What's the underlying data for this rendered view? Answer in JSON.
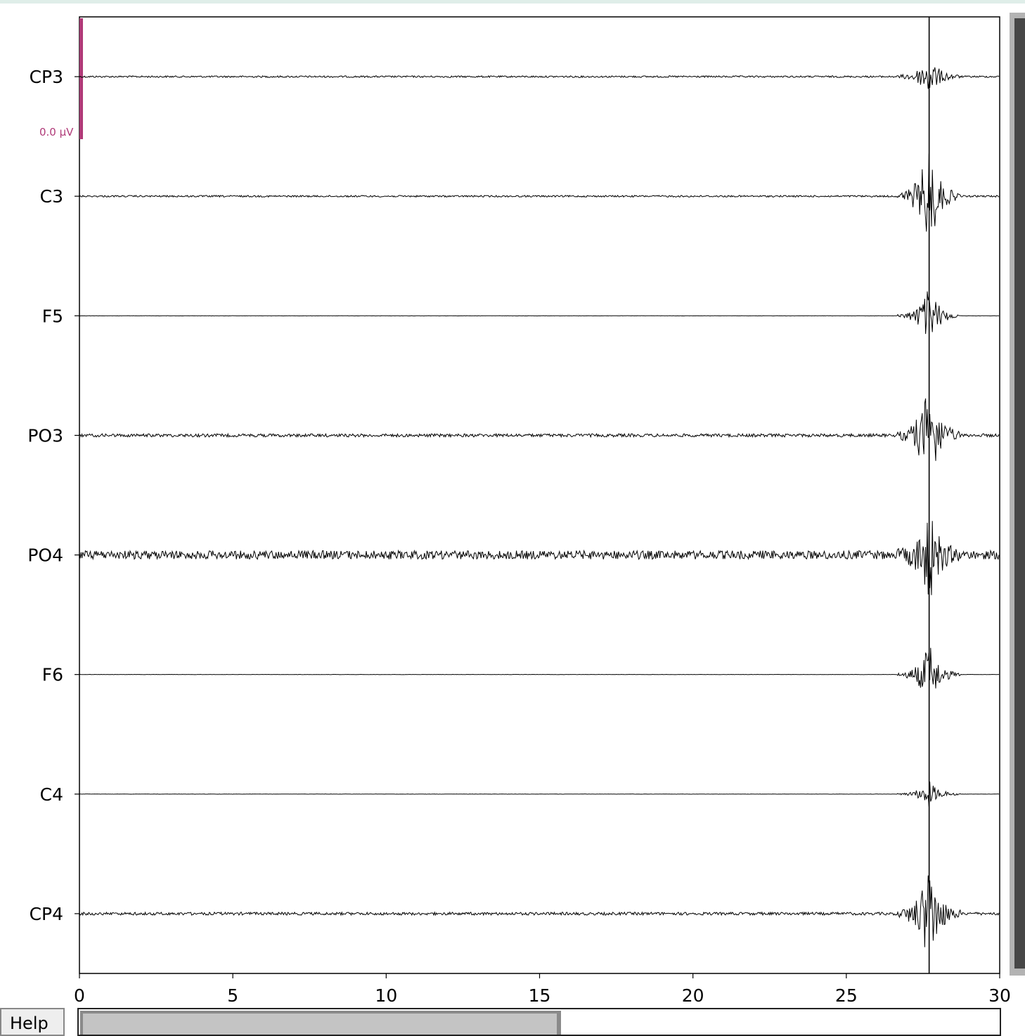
{
  "chart_data": {
    "type": "line",
    "title": "",
    "xlabel": "",
    "ylabel": "",
    "xlim": [
      0,
      30
    ],
    "x_ticks": [
      0,
      5,
      10,
      15,
      20,
      25,
      30
    ],
    "channels": [
      "CP3",
      "C3",
      "F5",
      "PO3",
      "PO4",
      "F6",
      "C4",
      "CP4"
    ],
    "series": [
      {
        "name": "CP3",
        "noise_level": 0.12,
        "burst_level": 0.6
      },
      {
        "name": "C3",
        "noise_level": 0.12,
        "burst_level": 1.6
      },
      {
        "name": "F5",
        "noise_level": 0.02,
        "burst_level": 0.9
      },
      {
        "name": "PO3",
        "noise_level": 0.22,
        "burst_level": 1.6
      },
      {
        "name": "PO4",
        "noise_level": 0.6,
        "burst_level": 1.4
      },
      {
        "name": "F6",
        "noise_level": 0.02,
        "burst_level": 1.0
      },
      {
        "name": "C4",
        "noise_level": 0.02,
        "burst_level": 0.4
      },
      {
        "name": "CP4",
        "noise_level": 0.2,
        "burst_level": 1.6
      }
    ],
    "event_marker_x": 27.7,
    "scale_bar_label": "0.0 µV",
    "scale_bar_color": "#b03a78",
    "grid": false
  },
  "ui": {
    "help_label": "Help",
    "horizontal_scroll_fraction": 0.52,
    "vertical_scroll_fraction": 1.0
  }
}
